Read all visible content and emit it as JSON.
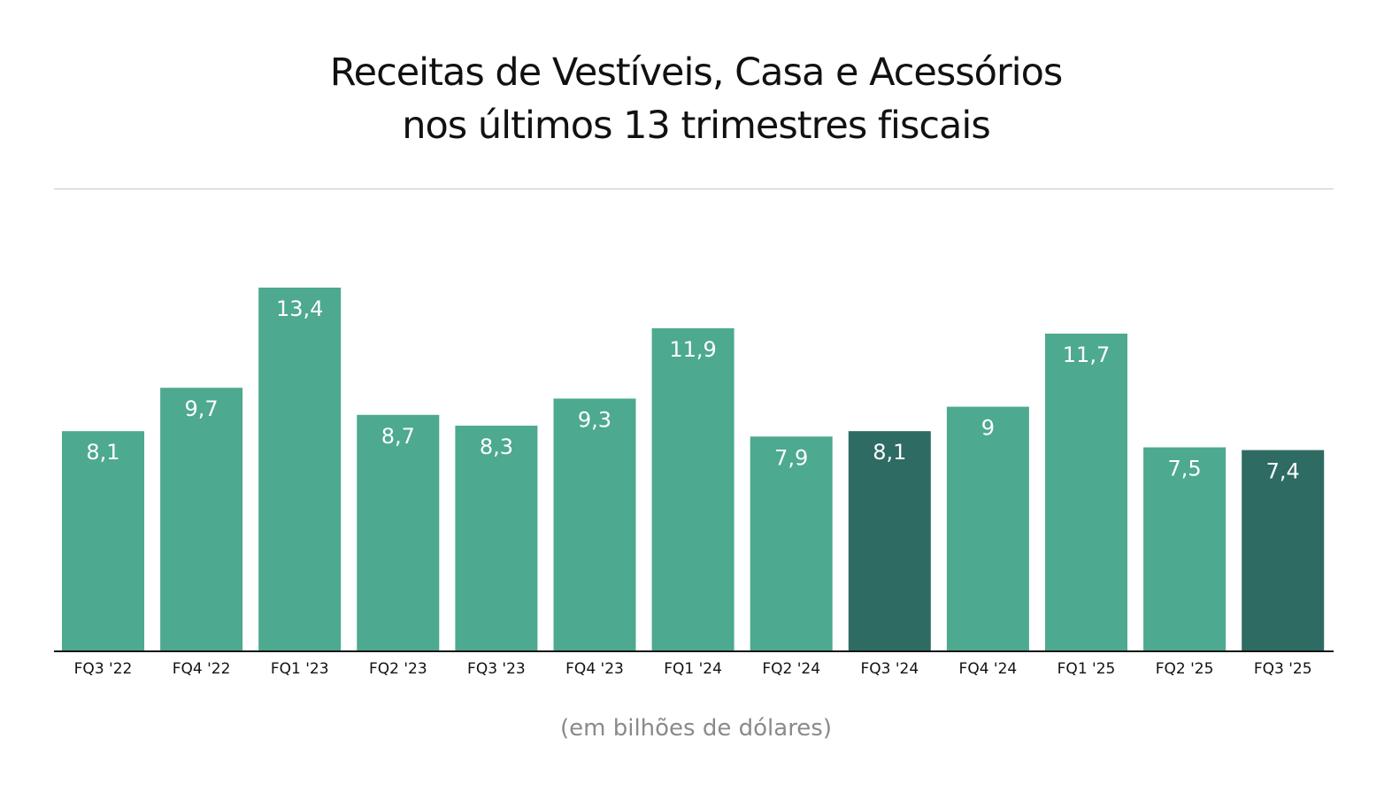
{
  "chart_data": {
    "type": "bar",
    "title_lines": [
      "Receitas de Vestíveis, Casa e Acessórios",
      "nos últimos 13 trimestres fiscais"
    ],
    "note": "(em bilhões de dólares)",
    "categories": [
      "FQ3 '22",
      "FQ4 '22",
      "FQ1 '23",
      "FQ2 '23",
      "FQ3 '23",
      "FQ4 '23",
      "FQ1 '24",
      "FQ2 '24",
      "FQ3 '24",
      "FQ4 '24",
      "FQ1 '25",
      "FQ2 '25",
      "FQ3 '25"
    ],
    "values": [
      8.1,
      9.7,
      13.4,
      8.7,
      8.3,
      9.3,
      11.9,
      7.9,
      8.1,
      9,
      11.7,
      7.5,
      7.4
    ],
    "value_labels": [
      "8,1",
      "9,7",
      "13,4",
      "8,7",
      "8,3",
      "9,3",
      "11,9",
      "7,9",
      "8,1",
      "9",
      "11,7",
      "7,5",
      "7,4"
    ],
    "highlighted": [
      "FQ3 '24",
      "FQ3 '25"
    ],
    "ylim": [
      0,
      13.4
    ],
    "grid": false,
    "colors": {
      "bar": "#4DA990",
      "highlight": "#2E6B62",
      "axis": "#111111"
    }
  }
}
